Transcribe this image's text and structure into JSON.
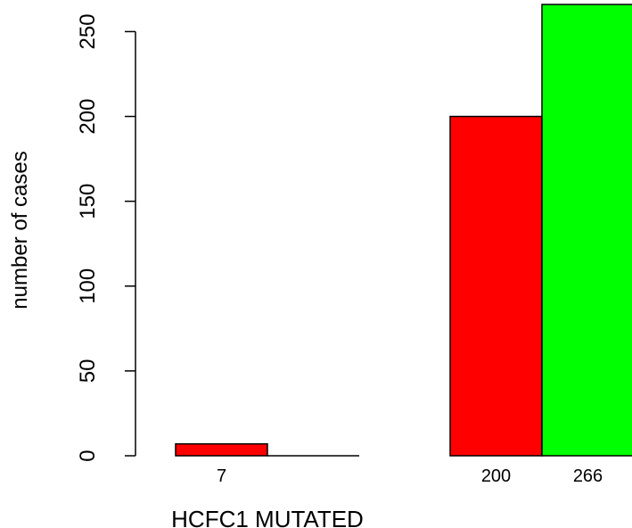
{
  "chart_data": {
    "type": "bar",
    "ylabel": "number of cases",
    "xlabel": "HCFC1 MUTATED",
    "ylim": [
      0,
      266
    ],
    "yticks": [
      0,
      50,
      100,
      150,
      200,
      250
    ],
    "grid": false,
    "legend": "none",
    "groups": [
      {
        "bars": [
          {
            "value": 7,
            "color": "#ff0000"
          },
          {
            "value": 0,
            "color": "#00ff00"
          }
        ]
      },
      {
        "bars": [
          {
            "value": 200,
            "color": "#ff0000"
          },
          {
            "value": 266,
            "color": "#00ff00"
          }
        ]
      }
    ],
    "bar_labels": [
      "7",
      "200",
      "266"
    ]
  }
}
